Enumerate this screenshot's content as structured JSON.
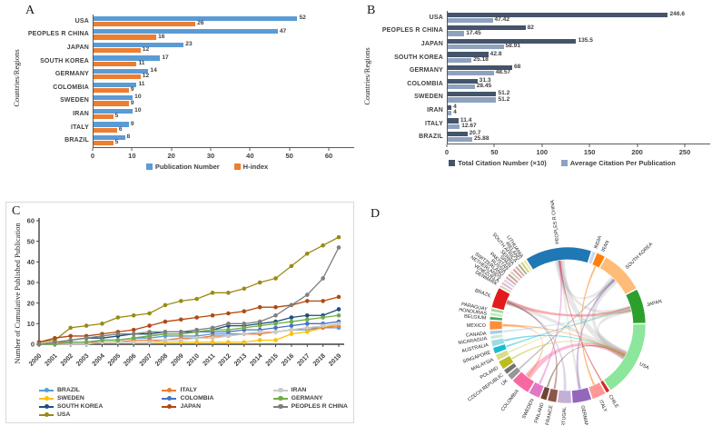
{
  "figure": {
    "background": "#ffffff",
    "panel_labels": {
      "a": "A",
      "b": "B",
      "c": "C",
      "d": "D"
    }
  },
  "chart_data": [
    {
      "id": "A",
      "type": "bar",
      "orientation": "horizontal",
      "ylabel": "Countries/Regions",
      "categories": [
        "USA",
        "PEOPLES R CHINA",
        "JAPAN",
        "SOUTH KOREA",
        "GERMANY",
        "COLOMBIA",
        "SWEDEN",
        "IRAN",
        "ITALY",
        "BRAZIL"
      ],
      "series": [
        {
          "name": "Publication Number",
          "color": "#5B9BD5",
          "values": [
            52,
            47,
            23,
            17,
            14,
            11,
            10,
            10,
            9,
            8
          ]
        },
        {
          "name": "H-index",
          "color": "#ED7D31",
          "values": [
            26,
            16,
            12,
            11,
            12,
            9,
            9,
            5,
            6,
            5
          ]
        }
      ],
      "xlim": [
        0,
        60
      ],
      "xticks": [
        0,
        10,
        20,
        30,
        40,
        50,
        60
      ],
      "legend_position": "bottom"
    },
    {
      "id": "B",
      "type": "bar",
      "orientation": "horizontal",
      "ylabel": "Countries/Regions",
      "categories": [
        "USA",
        "PEOPLES R CHINA",
        "JAPAN",
        "SOUTH KOREA",
        "GERMANY",
        "COLOMBIA",
        "SWEDEN",
        "IRAN",
        "ITALY",
        "BRAZIL"
      ],
      "series": [
        {
          "name": "Total Citation Number (×10)",
          "color": "#44546A",
          "values": [
            246.6,
            82,
            135.5,
            42.8,
            68,
            31.3,
            51.2,
            4,
            11.4,
            20.7
          ]
        },
        {
          "name": "Average Citation Per Publication",
          "color": "#8EA2BE",
          "values": [
            47.42,
            17.45,
            58.91,
            25.18,
            48.57,
            28.45,
            51.2,
            4,
            12.67,
            25.88
          ]
        }
      ],
      "xlim": [
        0,
        250
      ],
      "xticks": [
        0,
        50,
        100,
        150,
        200,
        250
      ],
      "legend_position": "bottom"
    },
    {
      "id": "C",
      "type": "line",
      "ylabel": "Number of Cumulative Published Publication",
      "x": [
        2000,
        2001,
        2002,
        2003,
        2004,
        2005,
        2006,
        2007,
        2008,
        2009,
        2010,
        2011,
        2012,
        2013,
        2014,
        2015,
        2016,
        2017,
        2018,
        2019
      ],
      "ylim": [
        0,
        60
      ],
      "yticks": [
        0,
        10,
        20,
        30,
        40,
        50,
        60
      ],
      "series": [
        {
          "name": "BRAZIL",
          "color": "#5B9BD5",
          "values": [
            0,
            1,
            1,
            1,
            2,
            2,
            3,
            3,
            4,
            4,
            4,
            5,
            5,
            5,
            6,
            6,
            7,
            7,
            8,
            8
          ]
        },
        {
          "name": "SWEDEN",
          "color": "#FFC000",
          "values": [
            0,
            0,
            1,
            1,
            1,
            1,
            1,
            1,
            1,
            1,
            1,
            1,
            1,
            1,
            2,
            2,
            5,
            6,
            8,
            10
          ]
        },
        {
          "name": "SOUTH KOREA",
          "color": "#1F4E79",
          "values": [
            0,
            1,
            2,
            3,
            3,
            4,
            5,
            5,
            6,
            6,
            6,
            7,
            9,
            9,
            10,
            11,
            13,
            14,
            14,
            17
          ]
        },
        {
          "name": "USA",
          "color": "#9A8A14",
          "values": [
            1,
            2,
            8,
            9,
            10,
            13,
            14,
            15,
            19,
            21,
            22,
            25,
            25,
            27,
            30,
            32,
            38,
            44,
            48,
            52
          ]
        },
        {
          "name": "ITALY",
          "color": "#ED7D31",
          "values": [
            0,
            1,
            1,
            1,
            1,
            1,
            2,
            2,
            2,
            3,
            3,
            4,
            4,
            5,
            5,
            6,
            7,
            8,
            8,
            9
          ]
        },
        {
          "name": "COLOMBIA",
          "color": "#4472C4",
          "values": [
            0,
            0,
            1,
            1,
            2,
            2,
            3,
            4,
            5,
            5,
            6,
            6,
            6,
            7,
            7,
            8,
            9,
            10,
            10,
            11
          ]
        },
        {
          "name": "JAPAN",
          "color": "#B04A11",
          "values": [
            1,
            3,
            4,
            4,
            5,
            6,
            7,
            9,
            11,
            12,
            13,
            14,
            15,
            16,
            18,
            18,
            19,
            21,
            21,
            23
          ]
        },
        {
          "name": "IRAN",
          "color": "#C9C9C9",
          "values": [
            0,
            0,
            0,
            0,
            1,
            1,
            1,
            1,
            2,
            2,
            3,
            3,
            4,
            5,
            6,
            6,
            7,
            8,
            9,
            10
          ]
        },
        {
          "name": "GERMANY",
          "color": "#70AD47",
          "values": [
            0,
            0,
            1,
            1,
            2,
            2,
            3,
            4,
            5,
            5,
            6,
            7,
            7,
            8,
            9,
            10,
            11,
            12,
            13,
            14
          ]
        },
        {
          "name": "PEOPLES R CHINA",
          "color": "#7F7F7F",
          "values": [
            0,
            1,
            2,
            3,
            4,
            5,
            5,
            6,
            6,
            6,
            7,
            8,
            10,
            10,
            11,
            14,
            19,
            24,
            32,
            47
          ]
        }
      ],
      "legend_columns": [
        [
          "BRAZIL",
          "SWEDEN",
          "SOUTH KOREA",
          "USA"
        ],
        [
          "ITALY",
          "COLOMBIA",
          "JAPAN"
        ],
        [
          "IRAN",
          "GERMANY",
          "PEOPLES R CHINA"
        ]
      ]
    },
    {
      "id": "D",
      "type": "chord",
      "description": "Country collaboration chord diagram",
      "countries": [
        {
          "name": "PEOPLES R CHINA",
          "color": "#1f77b4",
          "size": 52
        },
        {
          "name": "INDIA",
          "color": "#c6dbef",
          "size": 3
        },
        {
          "name": "IRAN",
          "color": "#ff7f0e",
          "size": 7
        },
        {
          "name": "SOUTH KOREA",
          "color": "#ffbb78",
          "size": 34
        },
        {
          "name": "JAPAN",
          "color": "#2ca02c",
          "size": 27
        },
        {
          "name": "USA",
          "color": "#8ce69b",
          "size": 60
        },
        {
          "name": "CHILE",
          "color": "#d62728",
          "size": 3
        },
        {
          "name": "ITALY",
          "color": "#ff9896",
          "size": 11
        },
        {
          "name": "GERMANY",
          "color": "#9467bd",
          "size": 15
        },
        {
          "name": "PORTUGAL",
          "color": "#c5b0d5",
          "size": 11
        },
        {
          "name": "FRANCE",
          "color": "#8c564b",
          "size": 7
        },
        {
          "name": "FINLAND",
          "color": "#6e4433",
          "size": 5
        },
        {
          "name": "SWEDEN",
          "color": "#e377c2",
          "size": 9
        },
        {
          "name": "COLOMBIA",
          "color": "#f768a1",
          "size": 15
        },
        {
          "name": "UK",
          "color": "#969696",
          "size": 5
        },
        {
          "name": "CZECH REPUBLIC",
          "color": "#737373",
          "size": 4
        },
        {
          "name": "POLAND",
          "color": "#bcbd22",
          "size": 7
        },
        {
          "name": "MALAYSIA",
          "color": "#dbdb8d",
          "size": 5
        },
        {
          "name": "SINGAPORE",
          "color": "#17becf",
          "size": 5
        },
        {
          "name": "AUSTRALIA",
          "color": "#9edae5",
          "size": 5
        },
        {
          "name": "NICARAGUA",
          "color": "#cfe8d8",
          "size": 3
        },
        {
          "name": "CANADA",
          "color": "#a6cee3",
          "size": 3
        },
        {
          "name": "MEXICO",
          "color": "#fd8d3c",
          "size": 7
        },
        {
          "name": "BELGIUM",
          "color": "#41ab5d",
          "size": 2.5
        },
        {
          "name": "HONDURAS",
          "color": "#c7e9c0",
          "size": 2.5
        },
        {
          "name": "PARAGUAY",
          "color": "#a1d99b",
          "size": 2.5
        },
        {
          "name": "BRAZIL",
          "color": "#e31a1c",
          "size": 16
        },
        {
          "name": "DENMARK",
          "color": "#d9d2bf",
          "size": 2
        },
        {
          "name": "VENEZUELA",
          "color": "#e8b8c8",
          "size": 2
        },
        {
          "name": "NETHERLANDS",
          "color": "#cdd5e8",
          "size": 2
        },
        {
          "name": "SWITZERLAND",
          "color": "#e4a8a8",
          "size": 2
        },
        {
          "name": "RUSSIA",
          "color": "#c4a79e",
          "size": 2
        },
        {
          "name": "PAKISTAN",
          "color": "#d8cfc0",
          "size": 2
        },
        {
          "name": "SPAIN",
          "color": "#e39ab0",
          "size": 2
        },
        {
          "name": "SERBIA",
          "color": "#cbb39f",
          "size": 2
        },
        {
          "name": "SOUTH AFRICA",
          "color": "#b5ad93",
          "size": 2
        },
        {
          "name": "IRELAND",
          "color": "#d3d374",
          "size": 2
        },
        {
          "name": "LITHUANIA",
          "color": "#e9e9a6",
          "size": 2
        }
      ],
      "chords": [
        {
          "from": "PEOPLES R CHINA",
          "to": "USA",
          "width": 9,
          "color": "#b0b0b0",
          "opacity": 0.3
        },
        {
          "from": "PEOPLES R CHINA",
          "to": "JAPAN",
          "width": 6,
          "color": "#b0b0b0",
          "opacity": 0.3
        },
        {
          "from": "PEOPLES R CHINA",
          "to": "SOUTH KOREA",
          "width": 4,
          "color": "#b0b0b0",
          "opacity": 0.3
        },
        {
          "from": "USA",
          "to": "SOUTH KOREA",
          "width": 8,
          "color": "#b0b0b0",
          "opacity": 0.3
        },
        {
          "from": "USA",
          "to": "JAPAN",
          "width": 6,
          "color": "#b0b0b0",
          "opacity": 0.3
        },
        {
          "from": "USA",
          "to": "COLOMBIA",
          "width": 6,
          "color": "#f768a1",
          "opacity": 0.45
        },
        {
          "from": "USA",
          "to": "BRAZIL",
          "width": 5,
          "color": "#b0b0b0",
          "opacity": 0.3
        },
        {
          "from": "JAPAN",
          "to": "BRAZIL",
          "width": 4,
          "color": "#e31a1c",
          "opacity": 0.35
        },
        {
          "from": "SOUTH KOREA",
          "to": "GERMANY",
          "width": 2.5,
          "color": "#9467bd",
          "opacity": 0.45
        },
        {
          "from": "GERMANY",
          "to": "PEOPLES R CHINA",
          "width": 2.5,
          "color": "#b0b0b0",
          "opacity": 0.3
        },
        {
          "from": "PORTUGAL",
          "to": "BRAZIL",
          "width": 2.5,
          "color": "#c5b0d5",
          "opacity": 0.55
        },
        {
          "from": "COLOMBIA",
          "to": "MEXICO",
          "width": 2,
          "color": "#fd8d3c",
          "opacity": 0.5
        },
        {
          "from": "IRAN",
          "to": "ITALY",
          "width": 1.6,
          "color": "#ff7f0e",
          "opacity": 0.55
        },
        {
          "from": "AUSTRALIA",
          "to": "USA",
          "width": 1.6,
          "color": "#17becf",
          "opacity": 0.55
        },
        {
          "from": "SINGAPORE",
          "to": "JAPAN",
          "width": 1.6,
          "color": "#17becf",
          "opacity": 0.5
        },
        {
          "from": "FRANCE",
          "to": "BRAZIL",
          "width": 1.6,
          "color": "#8c564b",
          "opacity": 0.55
        },
        {
          "from": "UK",
          "to": "SOUTH KOREA",
          "width": 1.6,
          "color": "#969696",
          "opacity": 0.55
        },
        {
          "from": "FINLAND",
          "to": "USA",
          "width": 1.6,
          "color": "#6e4433",
          "opacity": 0.5
        },
        {
          "from": "SWEDEN",
          "to": "PEOPLES R CHINA",
          "width": 2,
          "color": "#e377c2",
          "opacity": 0.5
        },
        {
          "from": "CANADA",
          "to": "JAPAN",
          "width": 1.4,
          "color": "#a6cee3",
          "opacity": 0.6
        },
        {
          "from": "MEXICO",
          "to": "USA",
          "width": 2,
          "color": "#fd8d3c",
          "opacity": 0.45
        },
        {
          "from": "CHILE",
          "to": "PEOPLES R CHINA",
          "width": 1.4,
          "color": "#d62728",
          "opacity": 0.5
        },
        {
          "from": "POLAND",
          "to": "USA",
          "width": 1.6,
          "color": "#bcbd22",
          "opacity": 0.5
        },
        {
          "from": "MALAYSIA",
          "to": "JAPAN",
          "width": 1.4,
          "color": "#dbdb8d",
          "opacity": 0.6
        }
      ]
    }
  ]
}
